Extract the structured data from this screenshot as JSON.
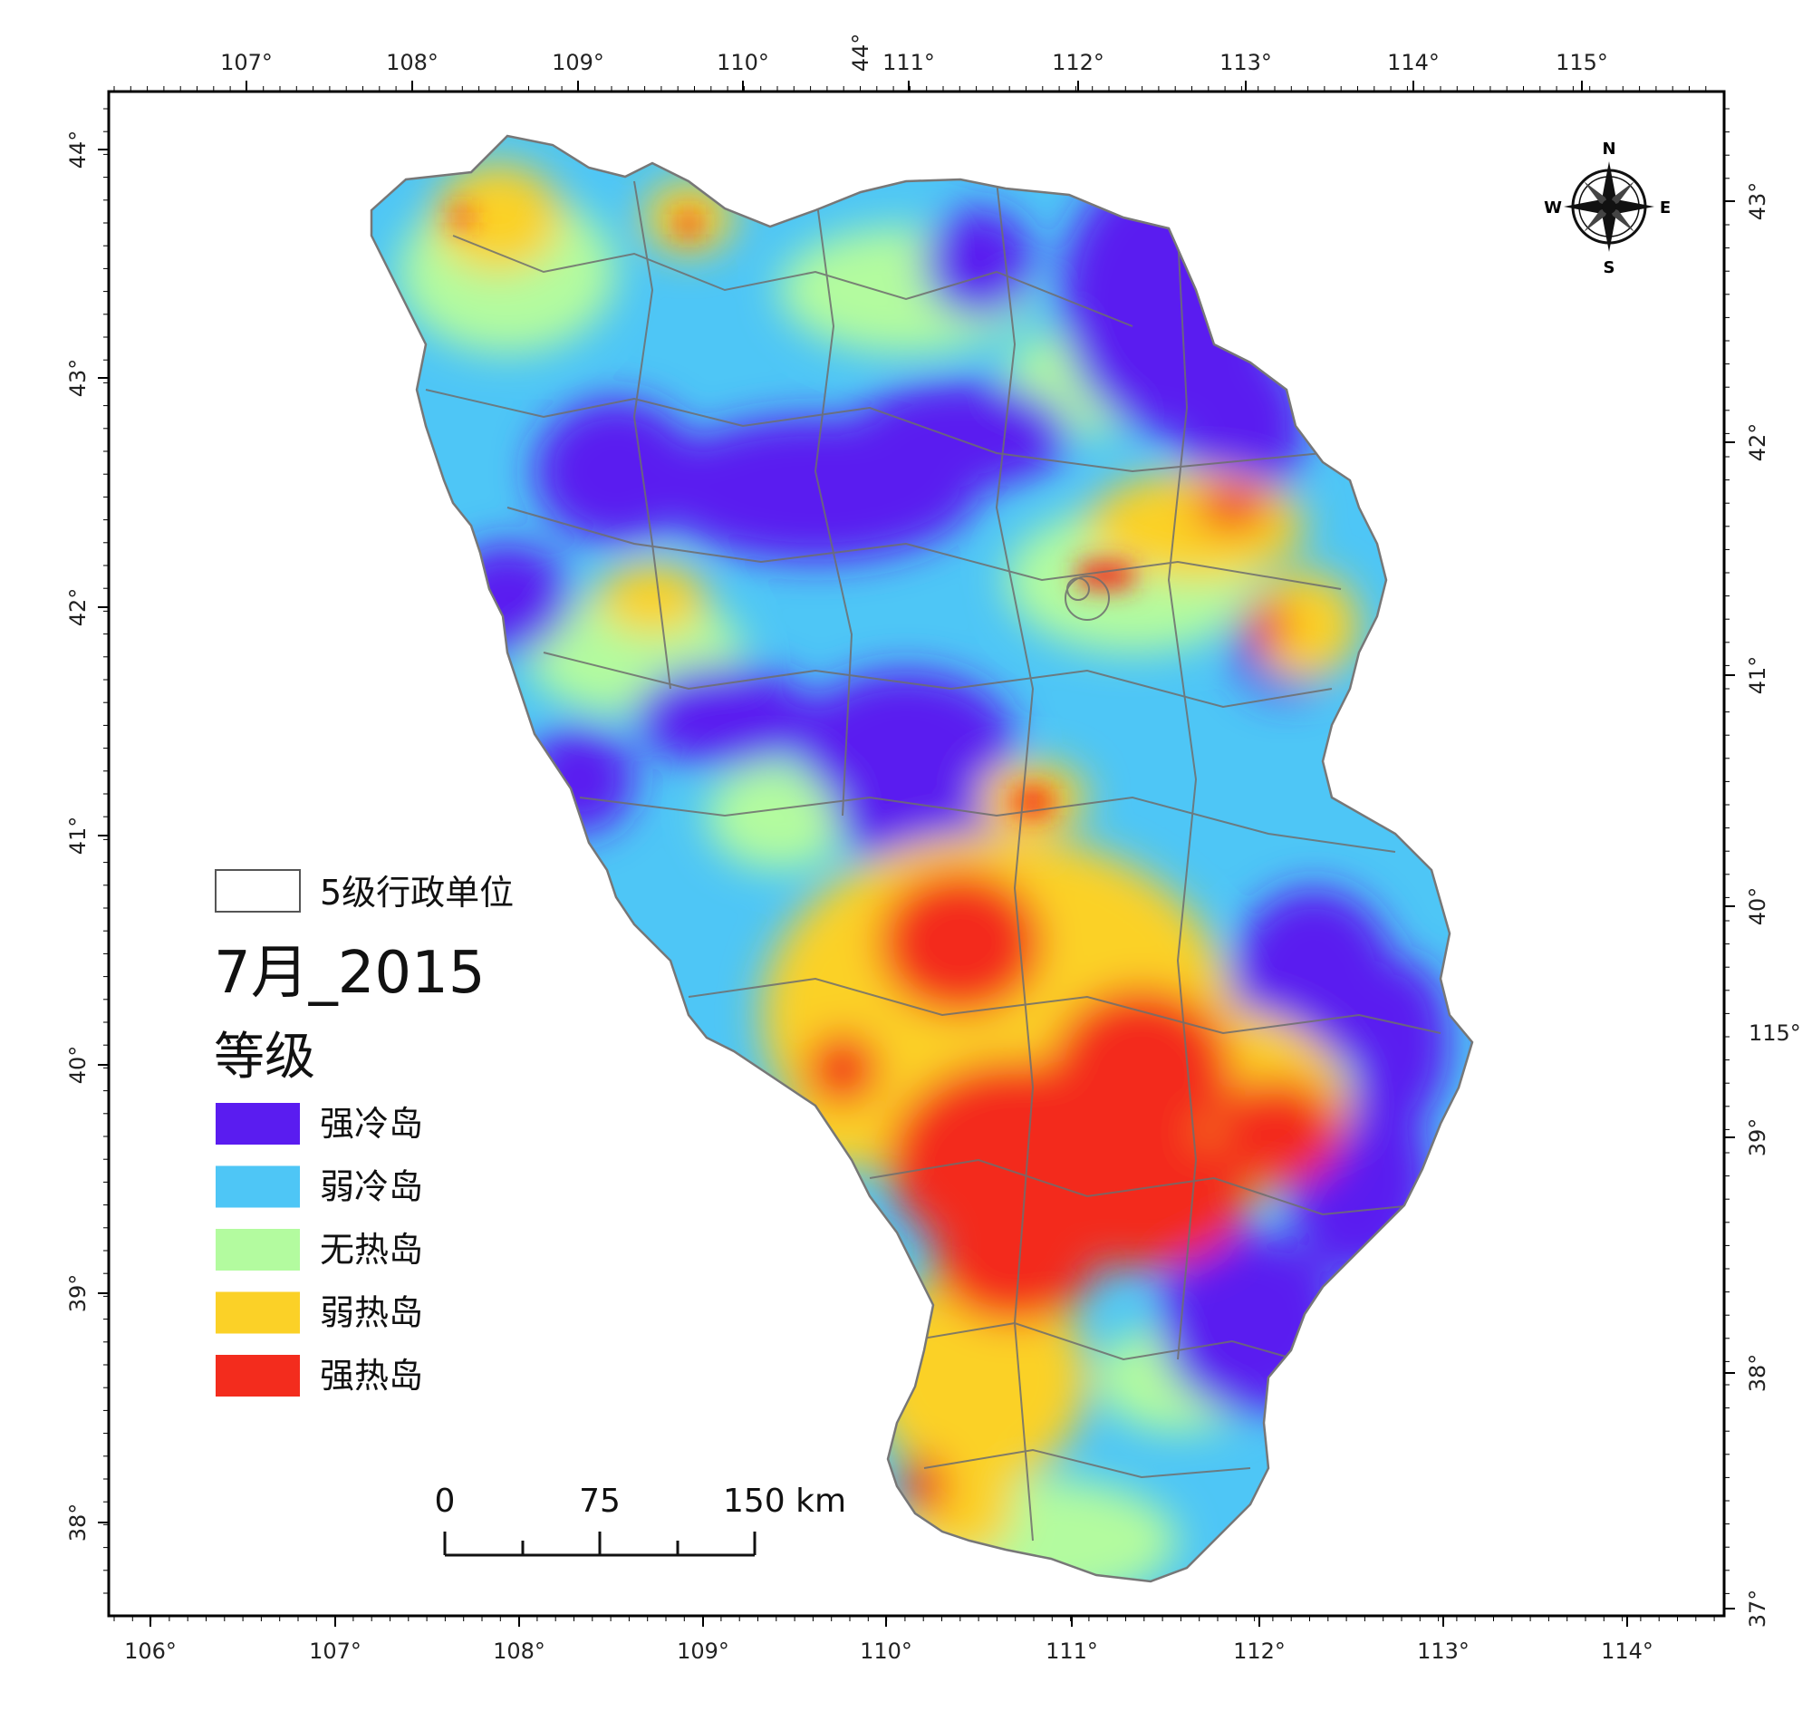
{
  "top_axis": {
    "labels": [
      "107°",
      "108°",
      "109°",
      "110°",
      "111°",
      "112°",
      "113°",
      "114°",
      "115°"
    ],
    "extra_label": "44°"
  },
  "bottom_axis": {
    "labels": [
      "106°",
      "107°",
      "108°",
      "109°",
      "110°",
      "111°",
      "112°",
      "113°",
      "114°"
    ]
  },
  "left_axis": {
    "labels": [
      "44°",
      "43°",
      "42°",
      "41°",
      "40°",
      "39°",
      "38°"
    ]
  },
  "right_axis": {
    "labels": [
      "43°",
      "42°",
      "41°",
      "40°",
      "39°",
      "38°",
      "37°"
    ],
    "extra_label": "115°"
  },
  "compass": {
    "n": "N",
    "s": "S",
    "e": "E",
    "w": "W"
  },
  "legend": {
    "boundary_label": "5级行政单位",
    "map_title": "7月_2015",
    "class_heading": "等级",
    "classes": [
      {
        "label": "强冷岛",
        "color": "#5a1cf0"
      },
      {
        "label": "弱冷岛",
        "color": "#4ec6f6"
      },
      {
        "label": "无热岛",
        "color": "#b3fb9f"
      },
      {
        "label": "弱热岛",
        "color": "#fbd127"
      },
      {
        "label": "强热岛",
        "color": "#f32c1d"
      }
    ]
  },
  "scale_bar": {
    "labels": [
      "0",
      "75",
      "150 km"
    ]
  }
}
